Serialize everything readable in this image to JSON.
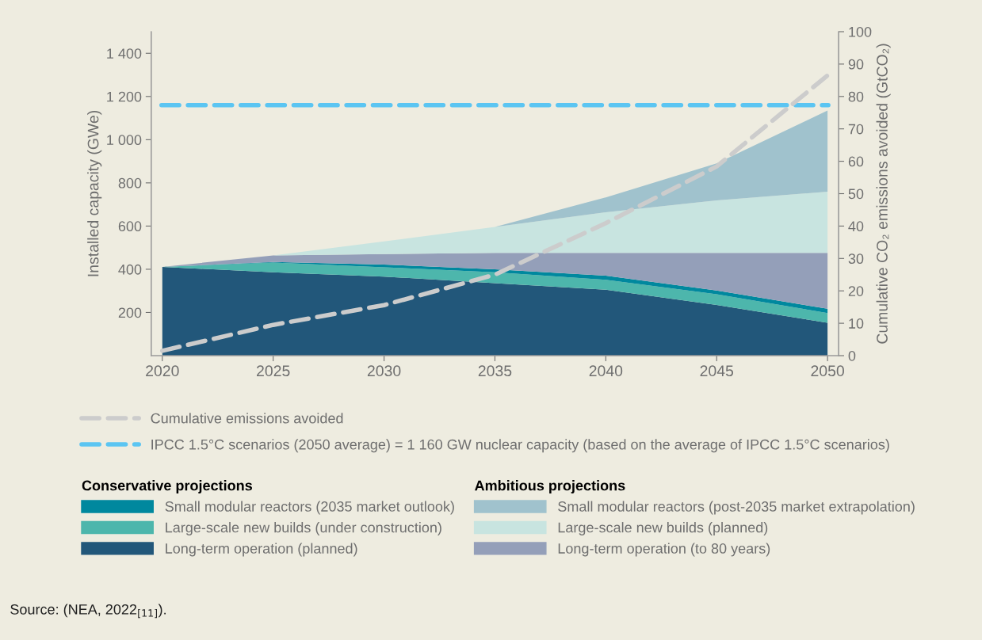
{
  "chart_data": {
    "type": "area",
    "stacked": true,
    "x": [
      2020,
      2025,
      2030,
      2035,
      2040,
      2045,
      2050
    ],
    "xlim": [
      2019.5,
      2050.5
    ],
    "xticks": [
      2020,
      2025,
      2030,
      2035,
      2040,
      2045,
      2050
    ],
    "ylim": [
      0,
      1500
    ],
    "yticks": [
      {
        "value": 200,
        "label": "200"
      },
      {
        "value": 400,
        "label": "400"
      },
      {
        "value": 600,
        "label": "600"
      },
      {
        "value": 800,
        "label": "800"
      },
      {
        "value": 1000,
        "label": "1 000"
      },
      {
        "value": 1200,
        "label": "1 200"
      },
      {
        "value": 1400,
        "label": "1 400"
      }
    ],
    "y2lim": [
      0,
      100
    ],
    "y2ticks": [
      0,
      10,
      20,
      30,
      40,
      50,
      60,
      70,
      80,
      90,
      100
    ],
    "ylabel": "Installed capacity (GWe)",
    "y2label": "Cumulative CO₂ emissions avoided (GtCO₂)",
    "series": [
      {
        "name": "Long-term operation (planned)",
        "color": "#22577a",
        "values": [
          411,
          386,
          366,
          336,
          305,
          235,
          152
        ]
      },
      {
        "name": "Large-scale new builds (under construction)",
        "color": "#4db6ac",
        "values": [
          0,
          45,
          43,
          50,
          46,
          49,
          45
        ]
      },
      {
        "name": "Small modular reactors (2035 market outlook)",
        "color": "#00889e",
        "values": [
          0,
          3,
          13,
          14,
          19,
          18,
          20
        ]
      },
      {
        "name": "Long-term operation (to 80 years)",
        "color": "#949fb9",
        "values": [
          0,
          30,
          48,
          76,
          106,
          174,
          259
        ]
      },
      {
        "name": "Large-scale new builds (planned)",
        "color": "#c8e4e0",
        "values": [
          0,
          0,
          59,
          120,
          188,
          243,
          283
        ]
      },
      {
        "name": "Small modular reactors (post-2035 market extrapolation)",
        "color": "#a0c2cd",
        "values": [
          0,
          0,
          0,
          0,
          69,
          171,
          376
        ]
      },
      {
        "name": "Cumulative emissions avoided",
        "type": "line",
        "axis": "y2",
        "line_style": "dashed",
        "color": "#cccccc",
        "values": [
          1.5,
          9.5,
          15.6,
          25,
          40.9,
          58.4,
          86.5
        ]
      }
    ],
    "ref_lines": [
      {
        "axis": "y",
        "value": 1160,
        "label": "IPCC 1.5°C scenarios (2050 average) = 1 160 GW nuclear capacity (based on the average of IPCC 1.5°C scenarios)",
        "color": "#5bc5f2",
        "line_style": "dashed"
      }
    ],
    "legend": "bottom",
    "grid": false,
    "annotations": [
      "Conservative projections",
      "Ambitious projections",
      "Source: (NEA, 2022$_{[11]}$)."
    ]
  }
}
